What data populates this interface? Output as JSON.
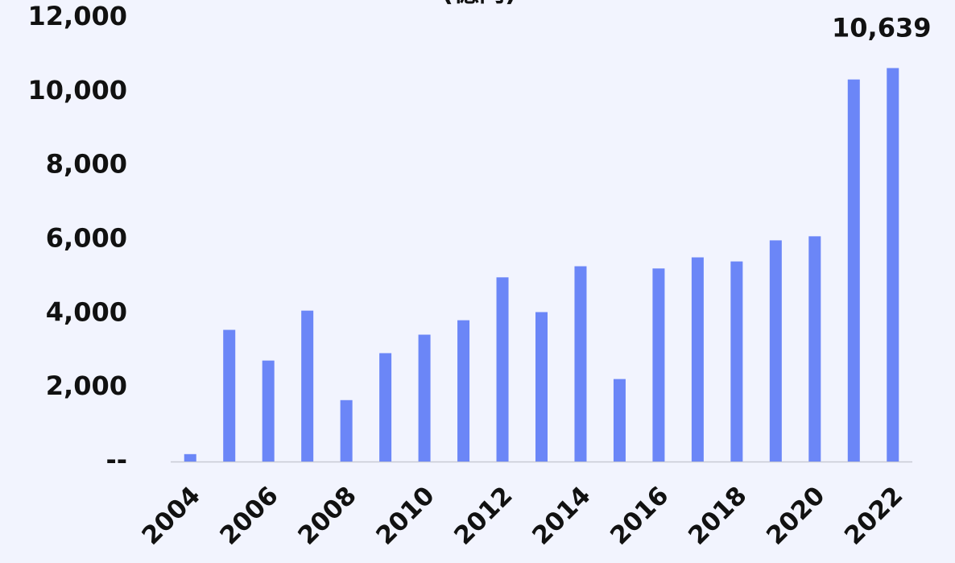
{
  "chart_data": {
    "type": "bar",
    "title": "(億円)",
    "categories": [
      "2004",
      null,
      "2006",
      null,
      "2008",
      null,
      "2010",
      null,
      "2012",
      null,
      "2014",
      null,
      "2016",
      null,
      "2018",
      null,
      "2020",
      null,
      "2022"
    ],
    "values": [
      200,
      3560,
      2730,
      4080,
      1660,
      2930,
      3430,
      3820,
      4980,
      4040,
      5280,
      2230,
      5220,
      5520,
      5410,
      5980,
      6090,
      10330,
      10639
    ],
    "value_labels": [
      null,
      null,
      null,
      null,
      null,
      null,
      null,
      null,
      null,
      null,
      null,
      null,
      null,
      null,
      null,
      null,
      null,
      null,
      "10,639"
    ],
    "color": "#6b86f7",
    "ylim": [
      0,
      12000
    ],
    "yticks": [
      {
        "value": 0,
        "label": "--"
      },
      {
        "value": 2000,
        "label": "2,000"
      },
      {
        "value": 4000,
        "label": "4,000"
      },
      {
        "value": 6000,
        "label": "6,000"
      },
      {
        "value": 8000,
        "label": "8,000"
      },
      {
        "value": 10000,
        "label": "10,000"
      },
      {
        "value": 12000,
        "label": "12,000"
      }
    ],
    "grid": false
  }
}
